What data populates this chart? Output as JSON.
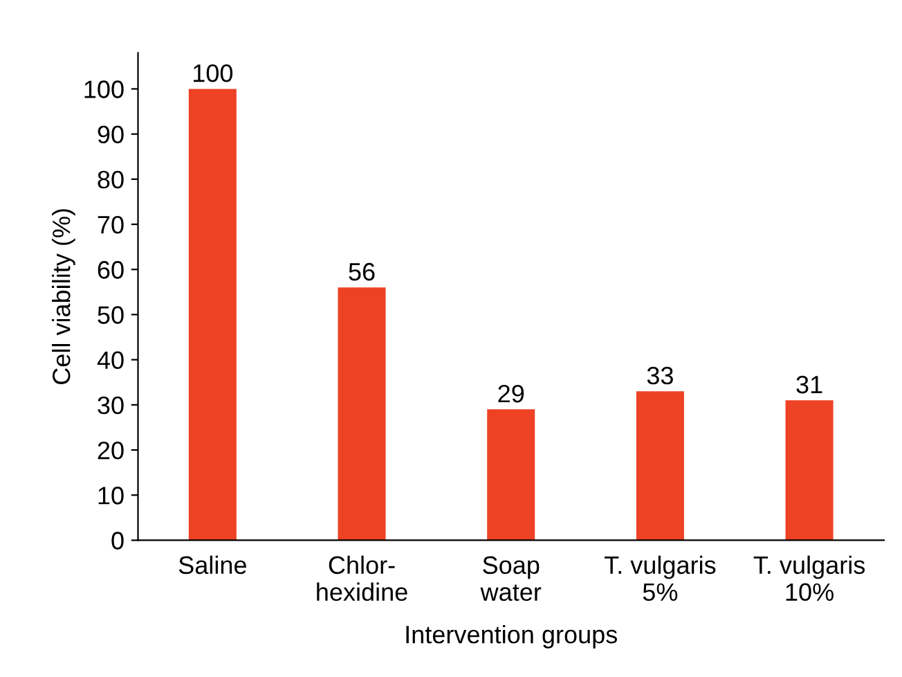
{
  "chart_data": {
    "type": "bar",
    "xlabel": "Intervention groups",
    "ylabel": "Cell viability (%)",
    "categories": [
      "Saline",
      "Chlor-\nhexidine",
      "Soap\nwater",
      "T. vulgaris\n5%",
      "T. vulgaris\n10%"
    ],
    "values": [
      100,
      56,
      29,
      33,
      31
    ],
    "color": "#ee4225",
    "ylim": [
      0,
      108
    ],
    "yticks": [
      0,
      10,
      20,
      30,
      40,
      50,
      60,
      70,
      80,
      90,
      100
    ],
    "data_labels": true,
    "grid": false,
    "legend": false
  }
}
